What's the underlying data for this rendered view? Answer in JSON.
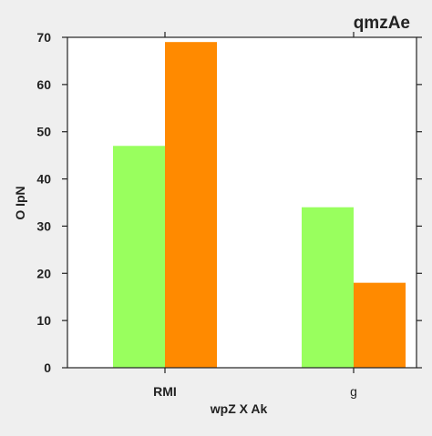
{
  "chart_data": {
    "type": "bar",
    "title": "qmzAe",
    "xlabel": "wpZ X Ak",
    "ylabel": "O IpN",
    "categories": [
      "RMI",
      "g"
    ],
    "series": [
      {
        "values": [
          47,
          34
        ],
        "color": "#99ff5e"
      },
      {
        "values": [
          69,
          18
        ],
        "color": "#ff8a00"
      }
    ],
    "ylim": [
      0,
      70
    ],
    "yticks": [
      0,
      10,
      20,
      30,
      40,
      50,
      60,
      70
    ],
    "grid": false,
    "legend": "none",
    "background": "#efefef",
    "plot_background": "#ffffff"
  }
}
